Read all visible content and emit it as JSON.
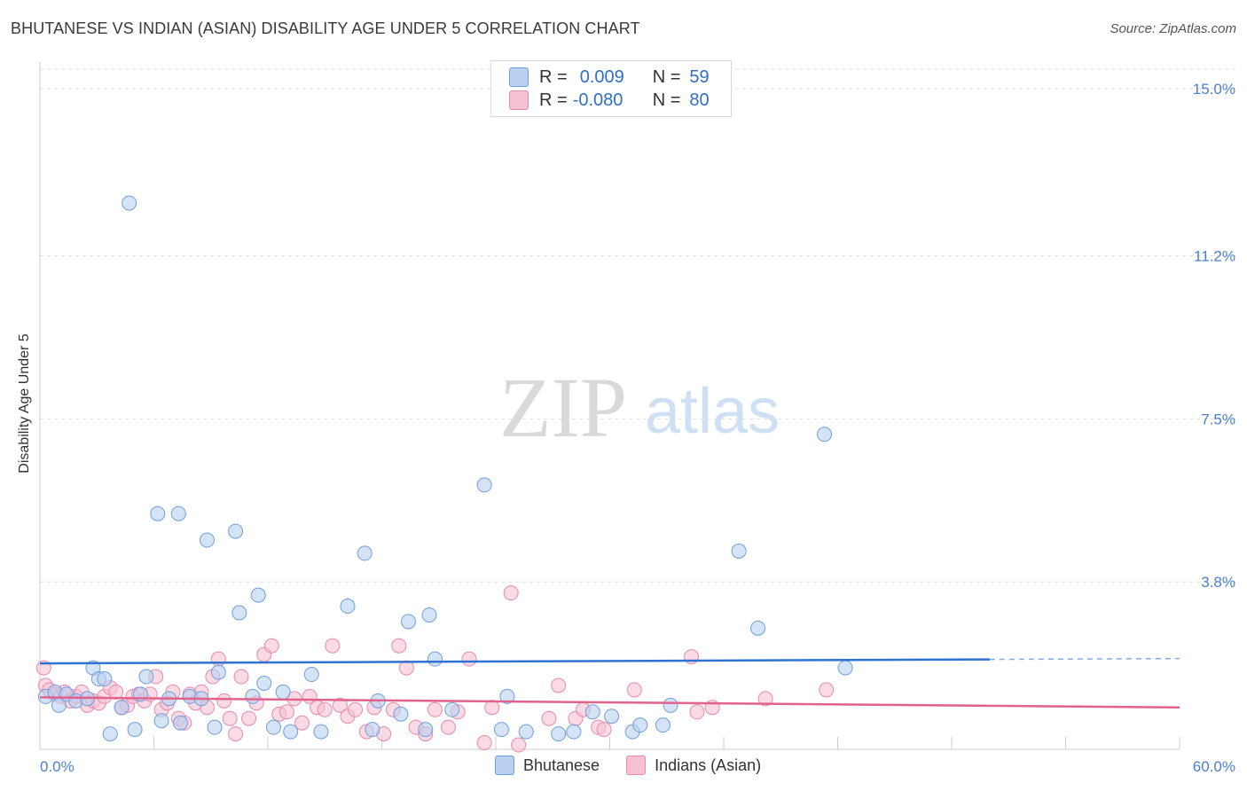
{
  "title": "BHUTANESE VS INDIAN (ASIAN) DISABILITY AGE UNDER 5 CORRELATION CHART",
  "source": "Source: ZipAtlas.com",
  "watermark": {
    "zip": "ZIP",
    "atlas": "atlas"
  },
  "legend": {
    "rows": [
      {
        "r_label": "R =",
        "r_value": "0.009",
        "n_label": "N =",
        "n_value": "59"
      },
      {
        "r_label": "R =",
        "r_value": "-0.080",
        "n_label": "N =",
        "n_value": "80"
      }
    ]
  },
  "bottom_legend": [
    "Bhutanese",
    "Indians (Asian)"
  ],
  "colors": {
    "blue_fill": "#b9d0f0",
    "blue_stroke": "#6f9fdc",
    "blue_line": "#2e72d2",
    "pink_fill": "#f6c2d3",
    "pink_stroke": "#e98aaa",
    "pink_line": "#e2628e",
    "grid": "#dddddd",
    "tick_label": "#4a7fd0"
  },
  "chart_data": {
    "type": "scatter",
    "title": "BHUTANESE VS INDIAN (ASIAN) DISABILITY AGE UNDER 5 CORRELATION CHART",
    "xlabel": "",
    "ylabel": "Disability Age Under 5",
    "xlim": [
      0,
      60
    ],
    "ylim": [
      0,
      15.6
    ],
    "x_tick_labels": [
      "0.0%",
      "60.0%"
    ],
    "y_ticks": [
      3.8,
      7.5,
      11.2,
      15.0
    ],
    "y_tick_labels": [
      "3.8%",
      "7.5%",
      "11.2%",
      "15.0%"
    ],
    "grid": true,
    "legend_position": "top-center",
    "series": [
      {
        "name": "Bhutanese",
        "trend": {
          "x0": 0,
          "y0": 1.95,
          "x1": 60,
          "y1": 2.06,
          "solid_until": 50
        },
        "points": [
          [
            0.3,
            1.2
          ],
          [
            0.8,
            1.3
          ],
          [
            1.0,
            1.0
          ],
          [
            1.4,
            1.25
          ],
          [
            1.9,
            1.1
          ],
          [
            2.5,
            1.15
          ],
          [
            2.8,
            1.85
          ],
          [
            3.1,
            1.6
          ],
          [
            3.4,
            1.6
          ],
          [
            3.7,
            0.35
          ],
          [
            4.3,
            0.95
          ],
          [
            4.7,
            12.4
          ],
          [
            5.0,
            0.45
          ],
          [
            5.3,
            1.25
          ],
          [
            5.6,
            1.65
          ],
          [
            6.2,
            5.35
          ],
          [
            6.4,
            0.65
          ],
          [
            6.8,
            1.15
          ],
          [
            7.3,
            5.35
          ],
          [
            7.4,
            0.6
          ],
          [
            7.9,
            1.2
          ],
          [
            8.5,
            1.15
          ],
          [
            8.8,
            4.75
          ],
          [
            9.2,
            0.5
          ],
          [
            9.4,
            1.75
          ],
          [
            10.3,
            4.95
          ],
          [
            10.5,
            3.1
          ],
          [
            11.2,
            1.2
          ],
          [
            11.5,
            3.5
          ],
          [
            11.8,
            1.5
          ],
          [
            12.3,
            0.5
          ],
          [
            12.8,
            1.3
          ],
          [
            13.2,
            0.4
          ],
          [
            14.3,
            1.7
          ],
          [
            14.8,
            0.4
          ],
          [
            16.2,
            3.25
          ],
          [
            17.1,
            4.45
          ],
          [
            17.5,
            0.45
          ],
          [
            17.8,
            1.1
          ],
          [
            19.0,
            0.8
          ],
          [
            19.4,
            2.9
          ],
          [
            20.3,
            0.45
          ],
          [
            20.5,
            3.05
          ],
          [
            20.8,
            2.05
          ],
          [
            21.7,
            0.9
          ],
          [
            23.4,
            6.0
          ],
          [
            24.3,
            0.45
          ],
          [
            24.6,
            1.2
          ],
          [
            25.6,
            0.4
          ],
          [
            27.3,
            0.35
          ],
          [
            28.1,
            0.4
          ],
          [
            29.1,
            0.85
          ],
          [
            30.1,
            0.75
          ],
          [
            31.2,
            0.4
          ],
          [
            31.6,
            0.55
          ],
          [
            32.8,
            0.55
          ],
          [
            33.2,
            1.0
          ],
          [
            36.8,
            4.5
          ],
          [
            37.8,
            2.75
          ],
          [
            41.3,
            7.15
          ],
          [
            42.4,
            1.85
          ]
        ]
      },
      {
        "name": "Indians (Asian)",
        "trend": {
          "x0": 0,
          "y0": 1.18,
          "x1": 60,
          "y1": 0.95
        },
        "points": [
          [
            0.2,
            1.85
          ],
          [
            0.3,
            1.45
          ],
          [
            0.5,
            1.35
          ],
          [
            0.8,
            1.25
          ],
          [
            1.1,
            1.2
          ],
          [
            1.3,
            1.3
          ],
          [
            1.6,
            1.1
          ],
          [
            1.9,
            1.2
          ],
          [
            2.2,
            1.3
          ],
          [
            2.5,
            1.0
          ],
          [
            2.8,
            1.1
          ],
          [
            3.1,
            1.05
          ],
          [
            3.4,
            1.2
          ],
          [
            3.7,
            1.4
          ],
          [
            4.0,
            1.3
          ],
          [
            4.3,
            0.95
          ],
          [
            4.6,
            1.0
          ],
          [
            4.9,
            1.2
          ],
          [
            5.2,
            1.25
          ],
          [
            5.5,
            1.1
          ],
          [
            5.8,
            1.25
          ],
          [
            6.1,
            1.65
          ],
          [
            6.4,
            0.9
          ],
          [
            6.7,
            1.05
          ],
          [
            7.0,
            1.3
          ],
          [
            7.3,
            0.7
          ],
          [
            7.6,
            0.6
          ],
          [
            7.9,
            1.25
          ],
          [
            8.2,
            1.05
          ],
          [
            8.5,
            1.3
          ],
          [
            8.8,
            0.95
          ],
          [
            9.1,
            1.65
          ],
          [
            9.4,
            2.05
          ],
          [
            9.7,
            1.1
          ],
          [
            10.0,
            0.7
          ],
          [
            10.3,
            0.35
          ],
          [
            10.6,
            1.65
          ],
          [
            11.0,
            0.7
          ],
          [
            11.4,
            1.05
          ],
          [
            11.8,
            2.15
          ],
          [
            12.2,
            2.35
          ],
          [
            12.6,
            0.8
          ],
          [
            13.0,
            0.85
          ],
          [
            13.4,
            1.15
          ],
          [
            13.8,
            0.6
          ],
          [
            14.2,
            1.2
          ],
          [
            14.6,
            0.95
          ],
          [
            15.0,
            0.9
          ],
          [
            15.4,
            2.35
          ],
          [
            15.8,
            1.0
          ],
          [
            16.2,
            0.75
          ],
          [
            16.6,
            0.9
          ],
          [
            17.2,
            0.4
          ],
          [
            17.6,
            0.95
          ],
          [
            18.1,
            0.35
          ],
          [
            18.6,
            0.9
          ],
          [
            18.9,
            2.35
          ],
          [
            19.3,
            1.85
          ],
          [
            19.8,
            0.5
          ],
          [
            20.3,
            0.35
          ],
          [
            20.8,
            0.9
          ],
          [
            21.5,
            0.5
          ],
          [
            22.0,
            0.85
          ],
          [
            22.6,
            2.05
          ],
          [
            23.4,
            0.15
          ],
          [
            23.8,
            0.95
          ],
          [
            24.8,
            3.55
          ],
          [
            25.2,
            0.1
          ],
          [
            26.8,
            0.7
          ],
          [
            27.3,
            1.45
          ],
          [
            28.2,
            0.7
          ],
          [
            28.6,
            0.9
          ],
          [
            29.4,
            0.5
          ],
          [
            29.7,
            0.45
          ],
          [
            31.3,
            1.35
          ],
          [
            34.3,
            2.1
          ],
          [
            34.6,
            0.85
          ],
          [
            35.4,
            0.95
          ],
          [
            38.2,
            1.15
          ],
          [
            41.4,
            1.35
          ]
        ]
      }
    ]
  }
}
